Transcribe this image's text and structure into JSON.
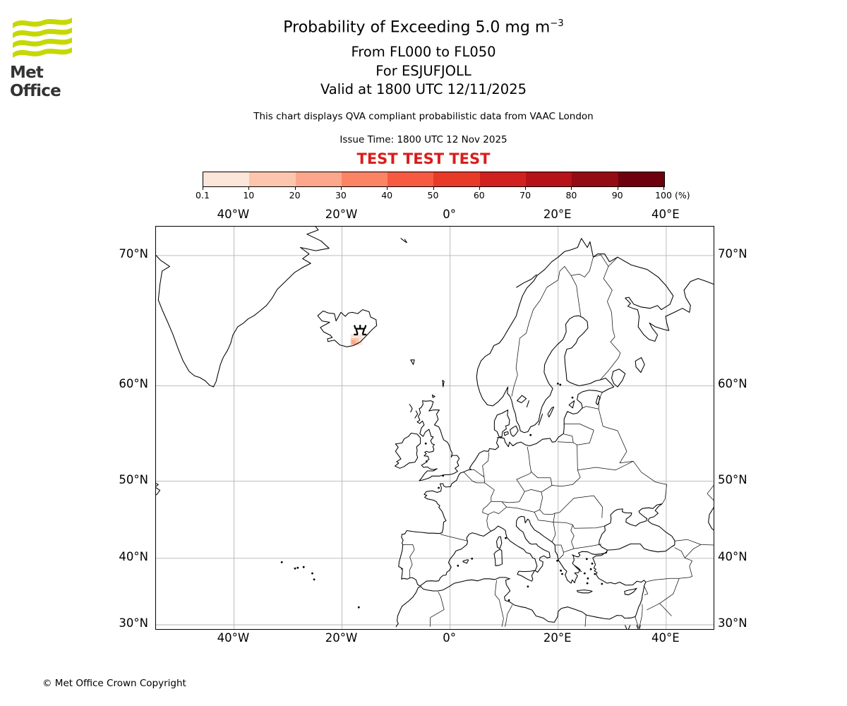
{
  "branding": {
    "logo_text": "Met Office",
    "logo_color": "#c6d800",
    "copyright": "© Met Office Crown Copyright"
  },
  "header": {
    "title_main": "Probability of Exceeding 5.0 mg m",
    "title_sup": "−3",
    "line_fl": "From FL000 to FL050",
    "line_volcano": "For ESJUFJOLL",
    "line_valid": "Valid at 1800 UTC 12/11/2025",
    "note": "This chart displays QVA compliant probabilistic data from VAAC London",
    "issue_time": "Issue Time: 1800 UTC 12 Nov 2025",
    "test_banner": "TEST TEST TEST",
    "test_color": "#d91d1b"
  },
  "colorbar": {
    "tick_labels": [
      "0.1",
      "10",
      "20",
      "30",
      "40",
      "50",
      "60",
      "70",
      "80",
      "90",
      "100"
    ],
    "unit_label": "(%)",
    "segment_colors": [
      "#fce5d9",
      "#fcc5ae",
      "#fca78c",
      "#fb8465",
      "#f65b42",
      "#e83a29",
      "#d0211f",
      "#b51318",
      "#930b13",
      "#6d010e"
    ]
  },
  "map_axes": {
    "x_ticks": [
      {
        "label": "40°W",
        "lon": -40
      },
      {
        "label": "20°W",
        "lon": -20
      },
      {
        "label": "0°",
        "lon": 0
      },
      {
        "label": "20°E",
        "lon": 20
      },
      {
        "label": "40°E",
        "lon": 40
      }
    ],
    "y_ticks": [
      {
        "label": "70°N",
        "lat": 70
      },
      {
        "label": "60°N",
        "lat": 60
      },
      {
        "label": "50°N",
        "lat": 50
      },
      {
        "label": "40°N",
        "lat": 40
      },
      {
        "label": "30°N",
        "lat": 30
      }
    ]
  },
  "chart_data": {
    "type": "map",
    "projection": "mercator",
    "extent": {
      "lon_min": -54.4,
      "lon_max": 48.8,
      "lat_min": 29.9,
      "lat_max": 71.8
    },
    "quantity": "Probability of exceeding 5.0 mg m−3 volcanic ash concentration",
    "flight_levels": "FL000 to FL050",
    "valid_time": "1800 UTC 12/11/2025",
    "issue_time": "1800 UTC 12 Nov 2025",
    "source": "VAAC London",
    "volcano": {
      "name": "ESJUFJOLL",
      "lon": -16.65,
      "lat": 64.32
    },
    "probability_bins_percent": [
      0.1,
      10,
      20,
      30,
      40,
      50,
      60,
      70,
      80,
      90,
      100
    ],
    "probability_cells": [
      {
        "probability": "0.1-10%",
        "lon_range": [
          -18.4,
          -16.2
        ],
        "lat_range": [
          63.55,
          64.42
        ],
        "color_index": 0
      },
      {
        "probability": "10-20%",
        "lon_range": [
          -18.4,
          -16.9
        ],
        "lat_range": [
          63.55,
          64.1
        ],
        "color_index": 1
      },
      {
        "probability": "20-30%",
        "lon_range": [
          -18.25,
          -17.5
        ],
        "lat_range": [
          63.6,
          63.95
        ],
        "color_index": 2
      }
    ],
    "gridline_lons": [
      -40,
      -20,
      0,
      20,
      40
    ],
    "gridline_lats": [
      30,
      40,
      50,
      60,
      70
    ],
    "grid_on": true
  }
}
